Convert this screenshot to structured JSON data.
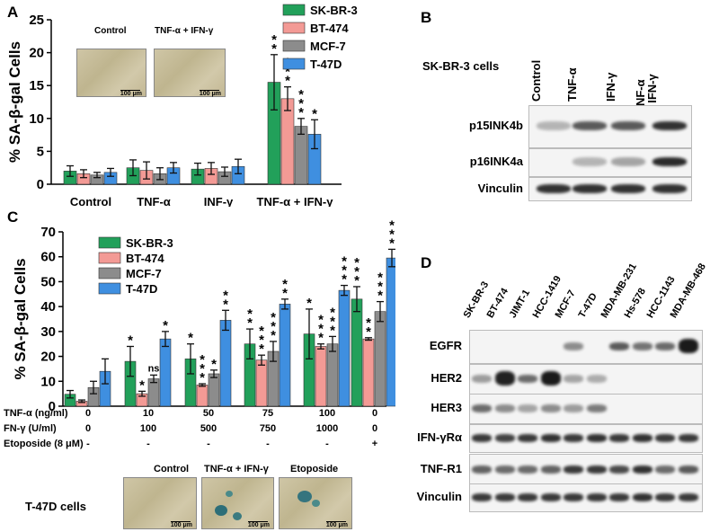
{
  "colors": {
    "green": "#22a05a",
    "pink": "#f39a95",
    "gray": "#8c8c8c",
    "blue": "#3f8fe0"
  },
  "panel_labels": {
    "a": "A",
    "b": "B",
    "c": "C",
    "d": "D"
  },
  "chart_data": [
    {
      "type": "bar",
      "id": "A",
      "ylabel": "% SA-β-gal Cells",
      "ylim": [
        0,
        25
      ],
      "yticks": [
        0,
        5,
        10,
        15,
        20,
        25
      ],
      "categories": [
        "Control",
        "TNF-α",
        "INF-γ",
        "TNF-α + IFN-γ"
      ],
      "series": [
        {
          "name": "SK-BR-3",
          "color": "#22a05a",
          "values": [
            2.0,
            2.5,
            2.3,
            15.5
          ],
          "errors": [
            0.8,
            1.2,
            0.9,
            4.2
          ],
          "sig": [
            "",
            "",
            "",
            "**"
          ]
        },
        {
          "name": "BT-474",
          "color": "#f39a95",
          "values": [
            1.6,
            2.1,
            2.4,
            13.0
          ],
          "errors": [
            0.6,
            1.3,
            0.9,
            1.8
          ],
          "sig": [
            "",
            "",
            "",
            "***"
          ]
        },
        {
          "name": "MCF-7",
          "color": "#8c8c8c",
          "values": [
            1.4,
            1.6,
            1.9,
            8.8
          ],
          "errors": [
            0.4,
            0.9,
            0.7,
            1.2
          ],
          "sig": [
            "",
            "",
            "",
            "***"
          ]
        },
        {
          "name": "T-47D",
          "color": "#3f8fe0",
          "values": [
            1.8,
            2.5,
            2.7,
            7.6
          ],
          "errors": [
            0.6,
            0.8,
            1.1,
            2.2
          ],
          "sig": [
            "",
            "",
            "",
            "*"
          ]
        }
      ]
    },
    {
      "type": "bar",
      "id": "C",
      "ylabel": "% SA-β-gal Cells",
      "ylim": [
        0,
        70
      ],
      "yticks": [
        0,
        10,
        20,
        30,
        40,
        50,
        60,
        70
      ],
      "categories": [
        "0/0",
        "10/100",
        "50/500",
        "75/750",
        "100/1000",
        "Etoposide"
      ],
      "row_labels": [
        "TNF-α (ng/ml)",
        "FN-γ (U/ml)",
        "Etoposide (8 μM)"
      ],
      "rows": [
        [
          "0",
          "10",
          "50",
          "75",
          "100",
          "0"
        ],
        [
          "0",
          "100",
          "500",
          "750",
          "1000",
          "0"
        ],
        [
          "-",
          "-",
          "-",
          "-",
          "-",
          "+"
        ]
      ],
      "series": [
        {
          "name": "SK-BR-3",
          "color": "#22a05a",
          "values": [
            4.8,
            18,
            19,
            25,
            29,
            43
          ],
          "errors": [
            1.5,
            6,
            6,
            6,
            10,
            5
          ],
          "sig": [
            "",
            "*",
            "*",
            "**",
            "*",
            "***"
          ]
        },
        {
          "name": "BT-474",
          "color": "#f39a95",
          "values": [
            2.0,
            5,
            8.5,
            18.5,
            24,
            27
          ],
          "errors": [
            0.5,
            1,
            0.5,
            2,
            1,
            0.5
          ],
          "sig": [
            "",
            "*",
            "***",
            "***",
            "***",
            "**"
          ]
        },
        {
          "name": "MCF-7",
          "color": "#8c8c8c",
          "values": [
            7.5,
            11,
            13,
            22,
            25,
            38
          ],
          "errors": [
            2.5,
            1.5,
            1.5,
            4,
            3,
            4
          ],
          "sig": [
            "",
            "ns",
            "*",
            "***",
            "***",
            "***"
          ]
        },
        {
          "name": "T-47D",
          "color": "#3f8fe0",
          "values": [
            14,
            27,
            34.5,
            41,
            46.5,
            59.5
          ],
          "errors": [
            5,
            3,
            4,
            2,
            2,
            3.5
          ],
          "sig": [
            "",
            "*",
            "**",
            "**",
            "***",
            "***"
          ]
        }
      ]
    }
  ],
  "panelA_images": {
    "control": "Control",
    "treated": "TNF-α + IFN-γ",
    "scale": "100 μm"
  },
  "panelB": {
    "cell_label": "SK-BR-3 cells",
    "columns": [
      "Control",
      "TNF-α",
      "IFN-γ",
      "TNF-α\n+ IFN-γ"
    ],
    "rows": [
      {
        "label": "p15INK4b",
        "intensity": [
          0.05,
          0.6,
          0.6,
          0.85
        ]
      },
      {
        "label": "p16INK4a",
        "intensity": [
          0.0,
          0.05,
          0.15,
          0.9
        ]
      },
      {
        "label": "Vinculin",
        "intensity": [
          0.85,
          0.85,
          0.85,
          0.85
        ]
      }
    ]
  },
  "panelC_images": {
    "cell_label": "T-47D cells",
    "labels": [
      "Control",
      "TNF-α + IFN-γ",
      "Etoposide"
    ],
    "scale": "100 μm"
  },
  "panelD": {
    "columns": [
      "SK-BR-3",
      "BT-474",
      "JIMT-1",
      "HCC-1419",
      "MCF-7",
      "T-47D",
      "MDA-MB-231",
      "Hs-578",
      "HCC-1143",
      "MDA-MB-468"
    ],
    "rows": [
      {
        "label": "EGFR",
        "intensity": [
          0,
          0,
          0,
          0,
          0.3,
          0,
          0.6,
          0.45,
          0.5,
          1.0
        ]
      },
      {
        "label": "HER2",
        "intensity": [
          0.2,
          0.95,
          0.5,
          1.0,
          0.15,
          0.1,
          0,
          0,
          0,
          0
        ]
      },
      {
        "label": "HER3",
        "intensity": [
          0.5,
          0.3,
          0.15,
          0.3,
          0.2,
          0.4,
          0,
          0,
          0,
          0
        ]
      },
      {
        "label": "IFN-γRα",
        "intensity": [
          0.8,
          0.75,
          0.8,
          0.85,
          0.8,
          0.85,
          0.8,
          0.85,
          0.8,
          0.8
        ]
      },
      {
        "label": "TNF-R1",
        "intensity": [
          0.55,
          0.5,
          0.5,
          0.55,
          0.8,
          0.8,
          0.7,
          0.85,
          0.5,
          0.6
        ]
      },
      {
        "label": "Vinculin",
        "intensity": [
          0.8,
          0.8,
          0.8,
          0.8,
          0.8,
          0.8,
          0.8,
          0.85,
          0.8,
          0.8
        ]
      }
    ]
  }
}
